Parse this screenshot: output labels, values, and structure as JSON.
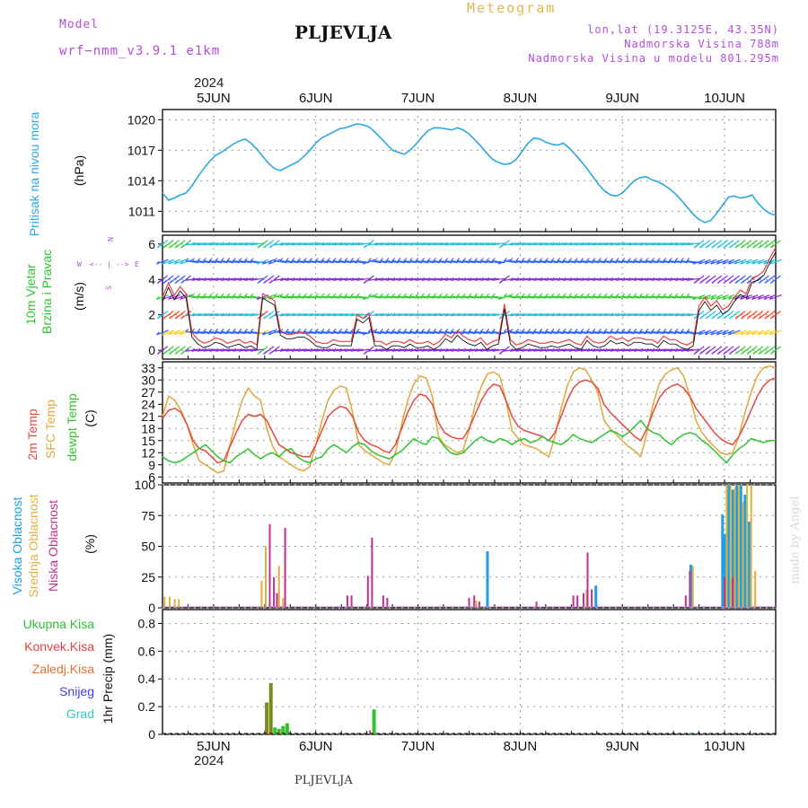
{
  "header": {
    "model_label": "Model",
    "model_name": "wrf−nmm_v3.9.1  e1km",
    "meteogram_label": "Meteogram",
    "station_title": "PLJEVLJA",
    "lonlat": "lon,lat (19.3125E, 43.35N)",
    "elevation": "Nadmorska Visina 788m",
    "model_elevation": "Nadmorska Visina u modelu 801.295m",
    "watermark": "made by Angel",
    "footer_title": "PLJEVLJA"
  },
  "time_axis": {
    "year_label": "2024",
    "day_labels": [
      "5JUN",
      "6JUN",
      "7JUN",
      "8JUN",
      "9JUN",
      "10JUN"
    ]
  },
  "colors": {
    "pressure": "#2aa8e0",
    "temp2m": "#e8473c",
    "sfc_temp": "#e0a83a",
    "dewpt": "#2fc42f",
    "high_cloud": "#1ea0e8",
    "mid_cloud": "#e0b040",
    "low_cloud": "#c0308c",
    "total_precip": "#30c030",
    "conv_precip": "#e84040",
    "frozen_precip": "#e87030",
    "snow": "#4040e0",
    "hail": "#30c8c8"
  },
  "panels": {
    "pressure": {
      "ylabel": "Pritisak na nivou mora",
      "unit": "(hPa)",
      "ticks": [
        "1020",
        "1017",
        "1014",
        "1011"
      ]
    },
    "wind": {
      "ylabel_1": "10m Vjetar",
      "ylabel_2": "Brzina i Pravac",
      "unit": "(m/s)",
      "ticks": [
        "6",
        "4",
        "2",
        "0"
      ],
      "compass": {
        "n": "N",
        "w": "W",
        "e": "E",
        "s": "S"
      }
    },
    "temperature": {
      "label_2m": "2m Temp",
      "label_sfc": "SFC Temp",
      "label_dew": "dewpt Temp",
      "unit": "(C)",
      "ticks": [
        "33",
        "30",
        "27",
        "24",
        "21",
        "18",
        "15",
        "12",
        "9",
        "6"
      ]
    },
    "clouds": {
      "label_high": "Visoka Oblacnost",
      "label_mid": "Srednja Oblacnost",
      "label_low": "Niska Oblacnost",
      "unit": "(%)",
      "ticks": [
        "100",
        "75",
        "50",
        "25",
        "0"
      ]
    },
    "precip": {
      "legend": [
        "Ukupna Kisa",
        "Konvek.Kisa",
        "Zaledj.Kisa",
        "Snijeg",
        "Grad"
      ],
      "ylabel": "1hr Precip (mm)",
      "ticks": [
        "0.8",
        "0.6",
        "0.4",
        "0.2",
        "0"
      ]
    }
  },
  "chart_data": [
    {
      "type": "line",
      "name": "pressure",
      "x_start_day": 4.5,
      "x_end_day": 10.5,
      "ylim": [
        1009,
        1021
      ],
      "values": [
        1012.8,
        1012.1,
        1012.3,
        1012.6,
        1012.8,
        1013.5,
        1014.4,
        1015.2,
        1015.9,
        1016.5,
        1016.8,
        1017.2,
        1017.6,
        1017.9,
        1018.1,
        1017.7,
        1017.1,
        1016.4,
        1015.7,
        1015.2,
        1015.0,
        1015.3,
        1015.6,
        1015.9,
        1016.4,
        1017.0,
        1017.7,
        1018.2,
        1018.5,
        1018.8,
        1019.1,
        1019.2,
        1019.4,
        1019.6,
        1019.5,
        1019.3,
        1018.8,
        1018.2,
        1017.6,
        1017.0,
        1016.8,
        1016.6,
        1017.0,
        1017.6,
        1018.3,
        1018.9,
        1019.2,
        1019.2,
        1019.1,
        1019.0,
        1019.2,
        1019.0,
        1018.6,
        1018.0,
        1017.4,
        1016.7,
        1016.1,
        1015.8,
        1015.6,
        1015.7,
        1016.1,
        1016.9,
        1017.7,
        1018.2,
        1018.1,
        1017.8,
        1017.6,
        1017.5,
        1017.7,
        1017.2,
        1016.6,
        1015.9,
        1015.2,
        1014.4,
        1013.6,
        1013.0,
        1012.6,
        1012.5,
        1012.8,
        1013.4,
        1014.0,
        1014.3,
        1014.4,
        1014.1,
        1013.9,
        1013.6,
        1013.2,
        1012.7,
        1012.1,
        1011.4,
        1010.7,
        1010.2,
        1009.9,
        1010.1,
        1010.8,
        1011.6,
        1012.4,
        1012.5,
        1012.3,
        1012.4,
        1012.6,
        1011.8,
        1011.2,
        1010.8,
        1010.6
      ]
    },
    {
      "type": "line",
      "name": "wind_speed",
      "x_start_day": 4.5,
      "x_end_day": 10.5,
      "ylim": [
        -0.5,
        6.5
      ],
      "values": [
        3.0,
        3.8,
        3.1,
        3.6,
        3.2,
        1.0,
        0.6,
        0.4,
        0.5,
        0.7,
        0.6,
        0.4,
        0.5,
        0.6,
        0.4,
        0.5,
        0.3,
        3.2,
        3.0,
        2.8,
        1.1,
        0.9,
        0.9,
        1.0,
        1.0,
        0.8,
        0.5,
        0.4,
        0.4,
        0.6,
        0.5,
        0.5,
        0.5,
        2.0,
        1.8,
        2.1,
        0.5,
        0.5,
        0.3,
        0.5,
        0.5,
        0.4,
        0.6,
        0.4,
        0.4,
        0.5,
        0.3,
        0.5,
        0.9,
        0.7,
        1.1,
        0.8,
        0.6,
        0.5,
        0.7,
        0.3,
        0.5,
        0.6,
        2.6,
        0.6,
        0.3,
        0.4,
        0.6,
        0.5,
        0.4,
        0.4,
        0.5,
        0.4,
        0.5,
        0.6,
        0.4,
        0.3,
        0.8,
        0.5,
        0.4,
        0.5,
        0.8,
        0.6,
        0.7,
        0.5,
        0.7,
        0.7,
        0.6,
        0.6,
        0.4,
        0.8,
        0.6,
        0.6,
        0.4,
        0.3,
        0.5,
        2.5,
        3.0,
        2.5,
        2.8,
        2.3,
        2.5,
        3.0,
        3.4,
        3.2,
        4.1,
        4.2,
        4.5,
        5.2,
        5.8
      ]
    },
    {
      "type": "line",
      "name": "temperature",
      "x_start_day": 4.5,
      "x_end_day": 10.5,
      "ylim": [
        4.5,
        34.5
      ],
      "series": [
        {
          "name": "2m Temp",
          "values": [
            20.5,
            22.5,
            23.0,
            22.0,
            19.0,
            15.0,
            13.0,
            12.5,
            11.0,
            9.5,
            10.0,
            13.5,
            17.0,
            20.0,
            21.5,
            21.0,
            21.5,
            20.0,
            17.0,
            14.0,
            13.0,
            12.0,
            11.5,
            11.0,
            11.0,
            14.0,
            17.5,
            21.0,
            22.5,
            23.5,
            23.0,
            21.0,
            17.0,
            15.0,
            14.0,
            13.5,
            12.5,
            12.0,
            14.0,
            18.0,
            22.0,
            25.0,
            26.5,
            26.0,
            24.0,
            19.5,
            17.0,
            16.0,
            15.5,
            15.5,
            18.0,
            21.5,
            25.0,
            27.5,
            29.0,
            28.5,
            25.0,
            21.0,
            18.5,
            17.5,
            17.0,
            16.5,
            16.0,
            15.0,
            17.0,
            21.0,
            25.0,
            28.0,
            29.5,
            30.0,
            29.5,
            28.0,
            24.0,
            22.0,
            20.5,
            19.0,
            17.5,
            16.0,
            15.0,
            18.0,
            22.0,
            25.5,
            27.5,
            28.5,
            29.0,
            28.0,
            26.0,
            23.0,
            21.0,
            19.0,
            17.0,
            15.5,
            14.5,
            14.0,
            16.0,
            19.0,
            22.5,
            26.0,
            28.5,
            30.0,
            30.5
          ]
        },
        {
          "name": "SFC Temp",
          "values": [
            21.0,
            26.0,
            25.0,
            22.5,
            19.0,
            14.0,
            10.0,
            9.0,
            8.0,
            7.0,
            7.5,
            14.0,
            20.0,
            25.0,
            28.0,
            26.0,
            25.0,
            18.0,
            13.5,
            11.0,
            10.0,
            9.0,
            8.0,
            7.5,
            8.5,
            14.0,
            20.0,
            25.0,
            27.5,
            28.5,
            28.0,
            22.0,
            14.0,
            12.5,
            11.5,
            10.5,
            9.5,
            9.0,
            12.0,
            19.0,
            25.0,
            29.0,
            31.0,
            30.5,
            26.0,
            16.0,
            14.0,
            13.0,
            12.0,
            12.5,
            17.5,
            24.0,
            28.5,
            31.5,
            32.0,
            31.0,
            25.0,
            17.5,
            15.5,
            14.0,
            13.5,
            13.0,
            12.0,
            11.0,
            16.0,
            23.0,
            28.5,
            32.0,
            33.0,
            32.5,
            30.0,
            27.0,
            20.0,
            18.0,
            16.5,
            15.0,
            13.5,
            12.5,
            11.0,
            17.0,
            24.0,
            29.0,
            31.5,
            32.5,
            33.0,
            31.0,
            26.0,
            20.0,
            17.0,
            15.0,
            13.5,
            12.0,
            11.5,
            12.0,
            16.0,
            22.0,
            27.0,
            31.0,
            33.0,
            33.5,
            33.0
          ]
        },
        {
          "name": "dewpt Temp",
          "values": [
            11.0,
            10.0,
            9.5,
            10.0,
            11.0,
            12.0,
            13.0,
            14.0,
            12.5,
            11.0,
            10.0,
            9.5,
            11.0,
            12.0,
            13.0,
            11.5,
            10.5,
            11.5,
            12.0,
            11.0,
            12.5,
            13.0,
            11.0,
            10.0,
            9.5,
            10.5,
            11.0,
            13.0,
            14.0,
            13.0,
            12.0,
            13.5,
            14.5,
            14.0,
            12.5,
            11.5,
            11.0,
            10.5,
            11.5,
            12.5,
            14.0,
            15.5,
            14.5,
            14.0,
            16.0,
            15.5,
            13.5,
            12.0,
            11.5,
            12.0,
            13.5,
            15.0,
            16.0,
            15.0,
            14.5,
            15.5,
            15.0,
            14.0,
            15.0,
            15.5,
            14.5,
            15.0,
            16.0,
            15.0,
            14.5,
            14.0,
            15.0,
            16.5,
            15.5,
            15.0,
            14.5,
            15.5,
            16.5,
            17.5,
            17.0,
            16.0,
            17.0,
            18.5,
            20.0,
            18.0,
            17.0,
            16.5,
            15.0,
            14.0,
            15.5,
            16.5,
            17.0,
            16.5,
            15.0,
            14.0,
            12.5,
            11.0,
            9.5,
            11.5,
            13.0,
            14.0,
            15.5,
            15.0,
            14.5,
            15.0,
            15.0
          ]
        }
      ]
    },
    {
      "type": "bar",
      "name": "clouds",
      "ylim": [
        0,
        100
      ],
      "series": [
        {
          "name": "Visoka Oblacnost",
          "bars": [
            [
              7.68,
              46
            ],
            [
              8.74,
              18
            ],
            [
              9.67,
              35
            ],
            [
              9.98,
              76
            ],
            [
              10.0,
              60
            ],
            [
              10.04,
              100
            ],
            [
              10.08,
              96
            ],
            [
              10.12,
              100
            ],
            [
              10.16,
              100
            ],
            [
              10.2,
              92
            ],
            [
              10.24,
              70
            ]
          ]
        },
        {
          "name": "Srednja Oblacnost",
          "bars": [
            [
              4.52,
              9
            ],
            [
              4.57,
              9
            ],
            [
              4.62,
              7
            ],
            [
              4.66,
              7
            ],
            [
              5.47,
              22
            ],
            [
              5.51,
              50
            ],
            [
              5.64,
              34
            ],
            [
              5.68,
              8
            ],
            [
              7.57,
              6
            ],
            [
              8.65,
              15
            ],
            [
              9.69,
              34
            ],
            [
              10.02,
              100
            ],
            [
              10.06,
              100
            ],
            [
              10.1,
              98
            ],
            [
              10.14,
              100
            ],
            [
              10.18,
              86
            ],
            [
              10.22,
              100
            ],
            [
              10.26,
              100
            ],
            [
              10.3,
              30
            ]
          ]
        },
        {
          "name": "Niska Oblacnost",
          "bars": [
            [
              5.55,
              68
            ],
            [
              5.59,
              25
            ],
            [
              5.62,
              12
            ],
            [
              5.7,
              65
            ],
            [
              6.31,
              10
            ],
            [
              6.35,
              10
            ],
            [
              6.51,
              26
            ],
            [
              6.55,
              57
            ],
            [
              6.66,
              10
            ],
            [
              6.7,
              8
            ],
            [
              7.5,
              8
            ],
            [
              7.55,
              10
            ],
            [
              7.6,
              5
            ],
            [
              8.16,
              5
            ],
            [
              8.52,
              10
            ],
            [
              8.56,
              10
            ],
            [
              8.62,
              12
            ],
            [
              8.66,
              45
            ],
            [
              8.7,
              15
            ],
            [
              9.62,
              10
            ],
            [
              9.66,
              30
            ],
            [
              10.0,
              25
            ],
            [
              10.08,
              25
            ]
          ]
        }
      ]
    },
    {
      "type": "bar",
      "name": "precip",
      "ylim": [
        0,
        0.9
      ],
      "series": [
        {
          "name": "Ukupna Kisa",
          "bars": [
            [
              5.52,
              0.23
            ],
            [
              5.56,
              0.37
            ],
            [
              5.6,
              0.05
            ],
            [
              5.64,
              0.04
            ],
            [
              5.68,
              0.06
            ],
            [
              5.72,
              0.08
            ],
            [
              6.57,
              0.18
            ],
            [
              9.67,
              0.01
            ]
          ]
        },
        {
          "name": "Konvek.Kisa",
          "bars": [
            [
              5.56,
              0.02
            ],
            [
              5.64,
              0.02
            ],
            [
              6.53,
              0.03
            ]
          ]
        }
      ]
    }
  ]
}
